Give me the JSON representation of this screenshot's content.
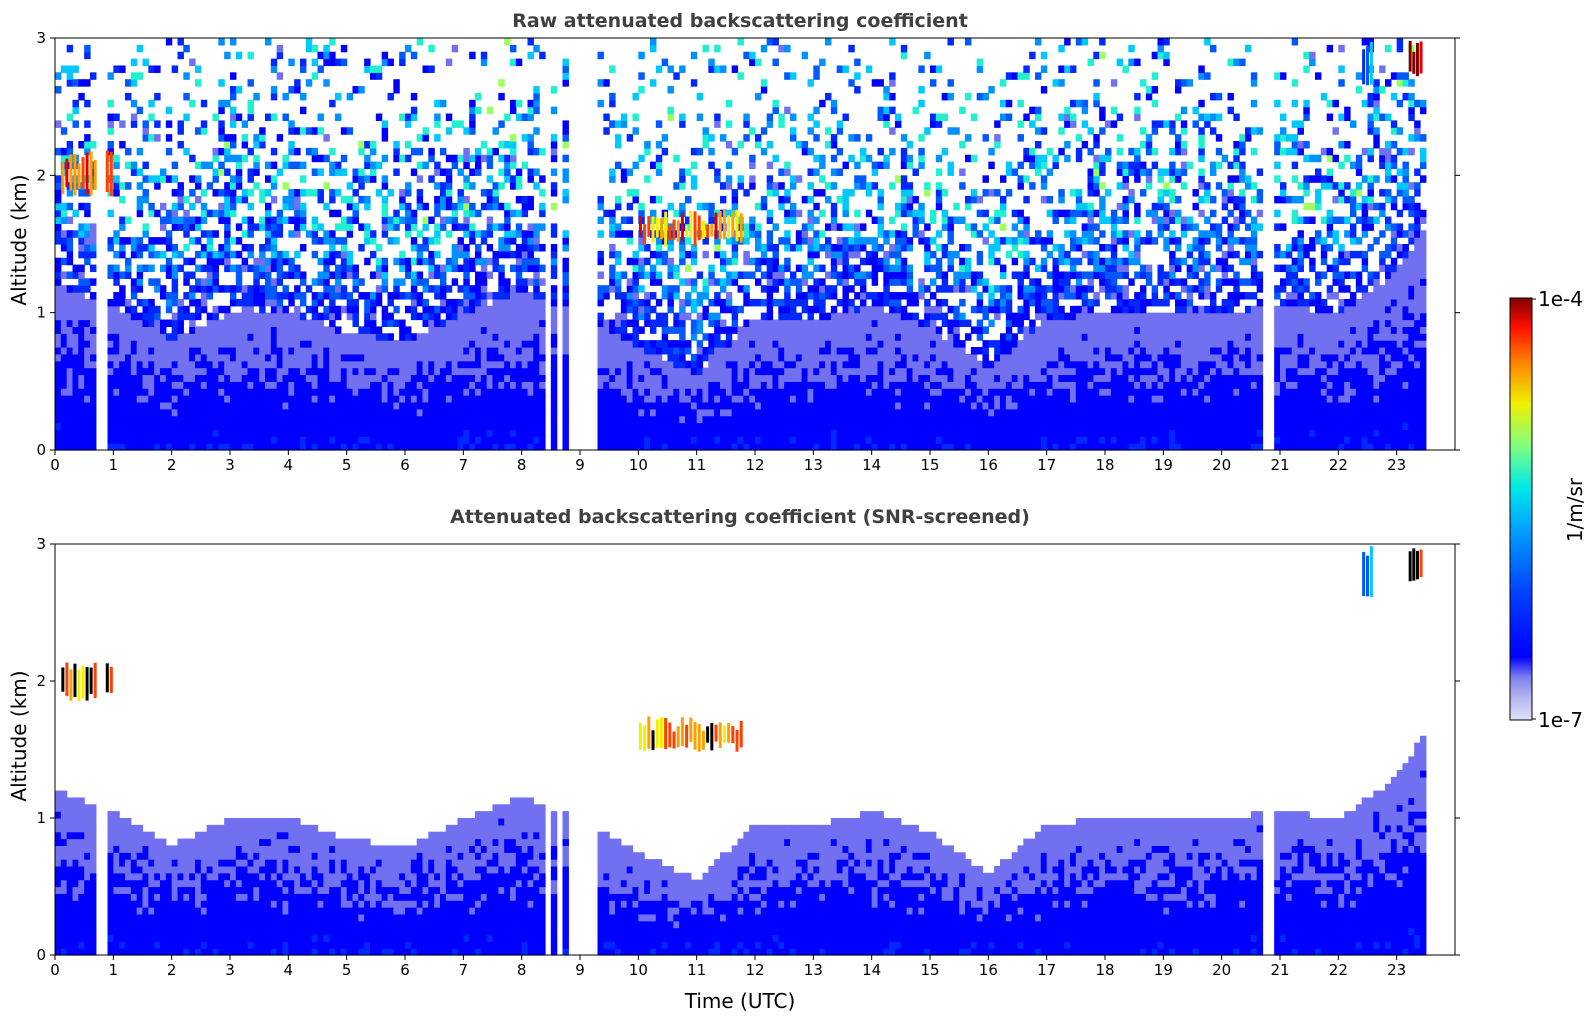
{
  "chart_data": [
    {
      "type": "heatmap",
      "title": "Raw attenuated backscattering coefficient",
      "xlabel": "",
      "ylabel": "Altitude (km)",
      "xlim": [
        0,
        24
      ],
      "ylim": [
        0,
        3
      ],
      "xticks": [
        "0",
        "1",
        "2",
        "3",
        "4",
        "5",
        "6",
        "7",
        "8",
        "9",
        "10",
        "11",
        "12",
        "13",
        "14",
        "15",
        "16",
        "17",
        "18",
        "19",
        "20",
        "21",
        "22",
        "23"
      ],
      "yticks": [
        "0",
        "1",
        "2",
        "3"
      ],
      "data_end_hour": 23.45,
      "gaps_utc": [
        [
          0.72,
          0.76
        ],
        [
          0.82,
          0.86
        ],
        [
          8.42,
          8.5
        ],
        [
          8.6,
          8.7
        ],
        [
          8.85,
          8.95
        ],
        [
          9.05,
          9.3
        ],
        [
          20.75,
          20.78
        ],
        [
          20.83,
          20.86
        ],
        [
          20.9,
          20.93
        ]
      ],
      "cloud_features": [
        {
          "start": 0.1,
          "end": 1.0,
          "base_km": 1.85,
          "top_km": 2.2,
          "max_log10": -4.2
        },
        {
          "start": 10.0,
          "end": 11.8,
          "base_km": 1.48,
          "top_km": 1.75,
          "max_log10": -4.3
        },
        {
          "start": 22.4,
          "end": 22.6,
          "base_km": 2.6,
          "top_km": 3.0,
          "max_log10": -5.3
        },
        {
          "start": 23.2,
          "end": 23.45,
          "base_km": 2.7,
          "top_km": 3.0,
          "max_log10": -4.0
        }
      ]
    },
    {
      "type": "heatmap",
      "title": "Attenuated backscattering coefficient (SNR-screened)",
      "xlabel": "Time (UTC)",
      "ylabel": "Altitude (km)",
      "xlim": [
        0,
        24
      ],
      "ylim": [
        0,
        3
      ],
      "xticks": [
        "0",
        "1",
        "2",
        "3",
        "4",
        "5",
        "6",
        "7",
        "8",
        "9",
        "10",
        "11",
        "12",
        "13",
        "14",
        "15",
        "16",
        "17",
        "18",
        "19",
        "20",
        "21",
        "22",
        "23"
      ],
      "yticks": [
        "0",
        "1",
        "2",
        "3"
      ],
      "boundary_layer_top_km": [
        {
          "t": 0,
          "h": 1.2
        },
        {
          "t": 1,
          "h": 1.05
        },
        {
          "t": 2,
          "h": 0.8
        },
        {
          "t": 3,
          "h": 1.0
        },
        {
          "t": 4,
          "h": 1.0
        },
        {
          "t": 5,
          "h": 0.85
        },
        {
          "t": 6,
          "h": 0.78
        },
        {
          "t": 7,
          "h": 1.0
        },
        {
          "t": 8,
          "h": 1.15
        },
        {
          "t": 9,
          "h": 1.0
        },
        {
          "t": 10,
          "h": 0.75
        },
        {
          "t": 11,
          "h": 0.55
        },
        {
          "t": 12,
          "h": 0.95
        },
        {
          "t": 13,
          "h": 0.95
        },
        {
          "t": 14,
          "h": 1.05
        },
        {
          "t": 15,
          "h": 0.9
        },
        {
          "t": 16,
          "h": 0.6
        },
        {
          "t": 17,
          "h": 0.95
        },
        {
          "t": 18,
          "h": 1.0
        },
        {
          "t": 19,
          "h": 1.0
        },
        {
          "t": 20,
          "h": 1.0
        },
        {
          "t": 21,
          "h": 1.05
        },
        {
          "t": 22,
          "h": 1.0
        },
        {
          "t": 23,
          "h": 1.3
        },
        {
          "t": 23.45,
          "h": 1.6
        }
      ]
    }
  ],
  "colorbar": {
    "label": "1/m/sr",
    "max_label": "1e-4",
    "min_label": "1e-7",
    "scale": "log",
    "range": [
      1e-07,
      0.0001
    ],
    "colors": [
      "#e0e0f8",
      "#b8b8f0",
      "#9898ee",
      "#7070f0",
      "#0000ff",
      "#0028ff",
      "#0058ff",
      "#0090ff",
      "#00c8ff",
      "#20f0d0",
      "#a0ff60",
      "#f0f000",
      "#ffa000",
      "#ff4000",
      "#e00000",
      "#800000"
    ]
  }
}
